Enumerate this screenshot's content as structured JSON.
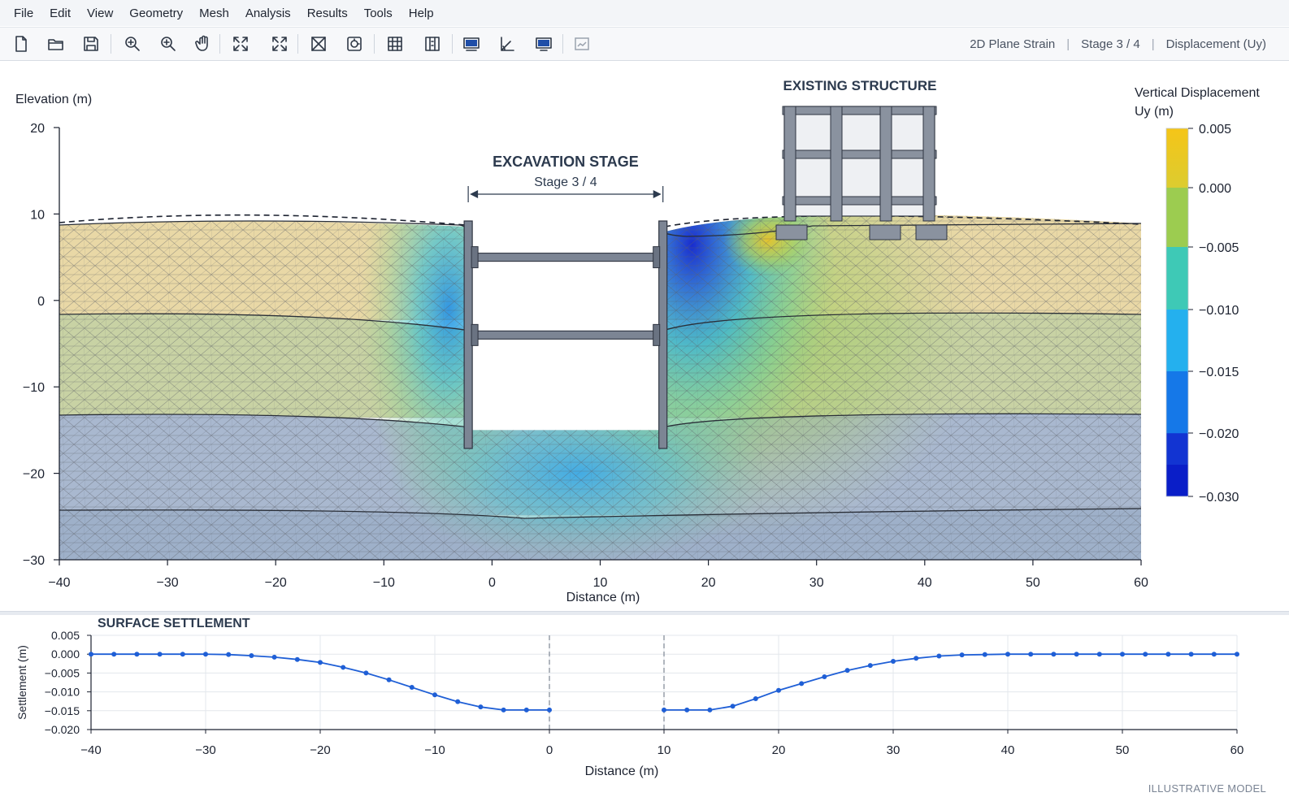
{
  "menu": [
    "File",
    "Edit",
    "View",
    "Geometry",
    "Mesh",
    "Analysis",
    "Results",
    "Tools",
    "Help"
  ],
  "toolbar": {
    "tools": [
      {
        "name": "new-file-icon"
      },
      {
        "name": "open-folder-icon"
      },
      {
        "name": "save-icon"
      },
      {
        "name": "zoom-region-icon"
      },
      {
        "name": "zoom-in-icon"
      },
      {
        "name": "pan-hand-icon"
      },
      {
        "name": "fit-view-icon"
      },
      {
        "name": "zoom-extents-icon"
      },
      {
        "name": "mesh-cross-icon"
      },
      {
        "name": "refine-mesh-icon"
      },
      {
        "name": "grid-view-icon"
      },
      {
        "name": "column-view-icon"
      },
      {
        "name": "monitor-icon"
      },
      {
        "name": "angle-tool-icon"
      },
      {
        "name": "screen-icon"
      },
      {
        "name": "report-icon"
      }
    ],
    "status": {
      "analysis_type": "2D Plane Strain",
      "stage": "Stage 3 / 4",
      "result": "Displacement (Uy)"
    }
  },
  "main_plot": {
    "ylabel": "Elevation (m)",
    "xlabel": "Distance (m)",
    "x_ticks": [
      -40,
      -30,
      -20,
      -10,
      0,
      10,
      20,
      30,
      40,
      50,
      60
    ],
    "y_ticks": [
      20,
      10,
      0,
      -10,
      -20,
      -30
    ],
    "x_tick_labels": [
      "−40",
      "−30",
      "−20",
      "−10",
      "0",
      "10",
      "20",
      "30",
      "40",
      "50",
      "60"
    ],
    "y_tick_labels": [
      "20",
      "10",
      "0",
      "−10",
      "−20",
      "−30"
    ],
    "excavation_title": "EXCAVATION STAGE",
    "excavation_subtitle": "Stage 3 / 4",
    "structure_label": "EXISTING STRUCTURE",
    "colorbar_title_1": "Vertical Displacement",
    "colorbar_title_2": "Uy (m)",
    "colorbar_labels": [
      "0.005",
      "0.000",
      "−0.005",
      "−0.010",
      "−0.015",
      "−0.020",
      "−0.030"
    ],
    "colorbar_colors": [
      "#f0c419",
      "#9ccc50",
      "#3cc8b8",
      "#25b4ec",
      "#1473e6",
      "#1440d6",
      "#0a1ec8"
    ],
    "layer_colors": [
      "#e9d8a6",
      "#c8d2a4",
      "#a9b8cf",
      "#9eb0c9"
    ]
  },
  "settlement_plot": {
    "title": "SURFACE SETTLEMENT",
    "ylabel": "Settlement (m)",
    "xlabel": "Distance (m)",
    "y_ticks": [
      0.005,
      0.0,
      -0.005,
      -0.01,
      -0.015,
      -0.02
    ],
    "y_tick_labels": [
      "0.005",
      "0.000",
      "−0.005",
      "−0.010",
      "−0.015",
      "−0.020"
    ],
    "x_ticks": [
      -40,
      -30,
      -20,
      -10,
      0,
      10,
      20,
      30,
      40,
      50,
      60
    ],
    "x_tick_labels": [
      "−40",
      "−30",
      "−20",
      "−10",
      "0",
      "10",
      "20",
      "30",
      "40",
      "50",
      "60"
    ],
    "line_color": "#1f5fd6"
  },
  "chart_data": {
    "type": "line",
    "title": "SURFACE SETTLEMENT",
    "xlabel": "Distance (m)",
    "ylabel": "Settlement (m)",
    "xlim": [
      -40,
      60
    ],
    "ylim": [
      -0.02,
      0.005
    ],
    "grid": true,
    "series": [
      {
        "points": [
          [
            -40,
            0
          ],
          [
            -38,
            0
          ],
          [
            -36,
            0
          ],
          [
            -34,
            0
          ],
          [
            -32,
            0
          ],
          [
            -30,
            0
          ],
          [
            -28,
            -0.0001
          ],
          [
            -26,
            -0.0004
          ],
          [
            -24,
            -0.0008
          ],
          [
            -22,
            -0.0014
          ],
          [
            -20,
            -0.0022
          ],
          [
            -18,
            -0.0035
          ],
          [
            -16,
            -0.005
          ],
          [
            -14,
            -0.0068
          ],
          [
            -12,
            -0.0088
          ],
          [
            -10,
            -0.0108
          ],
          [
            -8,
            -0.0126
          ],
          [
            -6,
            -0.014
          ],
          [
            -4,
            -0.0148
          ],
          [
            -2,
            -0.0148
          ],
          [
            0,
            -0.0148
          ]
        ]
      },
      {
        "points": [
          [
            10,
            -0.0148
          ],
          [
            12,
            -0.0148
          ],
          [
            14,
            -0.0148
          ],
          [
            16,
            -0.0138
          ],
          [
            18,
            -0.0118
          ],
          [
            20,
            -0.0096
          ],
          [
            22,
            -0.0078
          ],
          [
            24,
            -0.006
          ],
          [
            26,
            -0.0043
          ],
          [
            28,
            -0.003
          ],
          [
            30,
            -0.0019
          ],
          [
            32,
            -0.0011
          ],
          [
            34,
            -0.0005
          ],
          [
            36,
            -0.0002
          ],
          [
            38,
            -0.0001
          ],
          [
            40,
            0
          ],
          [
            42,
            0
          ],
          [
            44,
            0
          ],
          [
            46,
            0
          ],
          [
            48,
            0
          ],
          [
            50,
            0
          ],
          [
            52,
            0
          ],
          [
            54,
            0
          ],
          [
            56,
            0
          ],
          [
            58,
            0
          ],
          [
            60,
            0
          ]
        ]
      }
    ]
  },
  "watermark": "ILLUSTRATIVE MODEL"
}
